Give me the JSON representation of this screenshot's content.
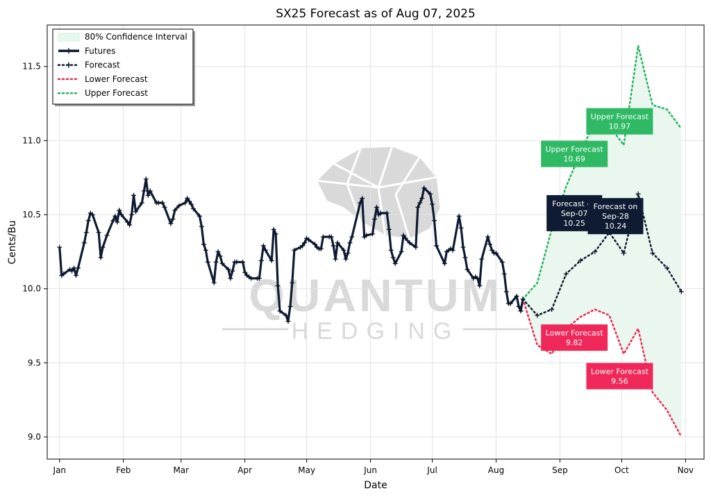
{
  "chart_data": {
    "type": "line",
    "title": "SX25 Forecast as of Aug 07, 2025",
    "xlabel": "Date",
    "ylabel": "Cents/Bu",
    "x_range": [
      "2024-12-26",
      "2025-11-10"
    ],
    "ylim": [
      8.85,
      11.78
    ],
    "x_ticks": [
      {
        "date": "2025-01-01",
        "label": "Jan"
      },
      {
        "date": "2025-02-01",
        "label": "Feb"
      },
      {
        "date": "2025-03-01",
        "label": "Mar"
      },
      {
        "date": "2025-04-01",
        "label": "Apr"
      },
      {
        "date": "2025-05-01",
        "label": "May"
      },
      {
        "date": "2025-06-01",
        "label": "Jun"
      },
      {
        "date": "2025-07-01",
        "label": "Jul"
      },
      {
        "date": "2025-08-01",
        "label": "Aug"
      },
      {
        "date": "2025-09-01",
        "label": "Sep"
      },
      {
        "date": "2025-10-01",
        "label": "Oct"
      },
      {
        "date": "2025-11-01",
        "label": "Nov"
      }
    ],
    "y_ticks": [
      9.0,
      9.5,
      10.0,
      10.5,
      11.0,
      11.5
    ],
    "grid": true,
    "legend_position": "top-left",
    "legend": [
      {
        "label": "80% Confidence Interval",
        "style": "fill"
      },
      {
        "label": "Futures",
        "style": "solid"
      },
      {
        "label": "Forecast",
        "style": "dotted-marker"
      },
      {
        "label": "Lower Forecast",
        "style": "dotted"
      },
      {
        "label": "Upper Forecast",
        "style": "dotted"
      }
    ],
    "colors": {
      "futures": "#0f1b33",
      "forecast": "#0f1b33",
      "lower": "#f0284f",
      "upper": "#21b35d",
      "band": "#e9f7ef"
    },
    "futures": [
      [
        "2025-01-01",
        10.28
      ],
      [
        "2025-01-02",
        10.09
      ],
      [
        "2025-01-03",
        10.1
      ],
      [
        "2025-01-06",
        10.13
      ],
      [
        "2025-01-07",
        10.12
      ],
      [
        "2025-01-08",
        10.14
      ],
      [
        "2025-01-09",
        10.09
      ],
      [
        "2025-01-10",
        10.14
      ],
      [
        "2025-01-13",
        10.31
      ],
      [
        "2025-01-14",
        10.38
      ],
      [
        "2025-01-15",
        10.46
      ],
      [
        "2025-01-16",
        10.51
      ],
      [
        "2025-01-17",
        10.5
      ],
      [
        "2025-01-20",
        10.38
      ],
      [
        "2025-01-21",
        10.21
      ],
      [
        "2025-01-22",
        10.28
      ],
      [
        "2025-01-24",
        10.36
      ],
      [
        "2025-01-27",
        10.46
      ],
      [
        "2025-01-28",
        10.49
      ],
      [
        "2025-01-29",
        10.45
      ],
      [
        "2025-01-30",
        10.53
      ],
      [
        "2025-01-31",
        10.5
      ],
      [
        "2025-02-03",
        10.45
      ],
      [
        "2025-02-04",
        10.43
      ],
      [
        "2025-02-05",
        10.5
      ],
      [
        "2025-02-06",
        10.63
      ],
      [
        "2025-02-07",
        10.52
      ],
      [
        "2025-02-10",
        10.58
      ],
      [
        "2025-02-11",
        10.66
      ],
      [
        "2025-02-12",
        10.74
      ],
      [
        "2025-02-13",
        10.63
      ],
      [
        "2025-02-14",
        10.66
      ],
      [
        "2025-02-17",
        10.58
      ],
      [
        "2025-02-18",
        10.58
      ],
      [
        "2025-02-20",
        10.58
      ],
      [
        "2025-02-21",
        10.55
      ],
      [
        "2025-02-24",
        10.44
      ],
      [
        "2025-02-25",
        10.47
      ],
      [
        "2025-02-26",
        10.53
      ],
      [
        "2025-02-28",
        10.56
      ],
      [
        "2025-03-03",
        10.58
      ],
      [
        "2025-03-04",
        10.61
      ],
      [
        "2025-03-05",
        10.59
      ],
      [
        "2025-03-06",
        10.57
      ],
      [
        "2025-03-07",
        10.54
      ],
      [
        "2025-03-10",
        10.49
      ],
      [
        "2025-03-11",
        10.42
      ],
      [
        "2025-03-12",
        10.3
      ],
      [
        "2025-03-13",
        10.26
      ],
      [
        "2025-03-14",
        10.18
      ],
      [
        "2025-03-17",
        10.04
      ],
      [
        "2025-03-18",
        10.18
      ],
      [
        "2025-03-19",
        10.25
      ],
      [
        "2025-03-20",
        10.22
      ],
      [
        "2025-03-21",
        10.17
      ],
      [
        "2025-03-24",
        10.13
      ],
      [
        "2025-03-25",
        10.07
      ],
      [
        "2025-03-26",
        10.12
      ],
      [
        "2025-03-27",
        10.18
      ],
      [
        "2025-03-28",
        10.18
      ],
      [
        "2025-03-31",
        10.18
      ],
      [
        "2025-04-01",
        10.11
      ],
      [
        "2025-04-02",
        10.09
      ],
      [
        "2025-04-03",
        10.08
      ],
      [
        "2025-04-04",
        10.07
      ],
      [
        "2025-04-07",
        10.07
      ],
      [
        "2025-04-08",
        10.07
      ],
      [
        "2025-04-09",
        10.19
      ],
      [
        "2025-04-10",
        10.29
      ],
      [
        "2025-04-11",
        10.26
      ],
      [
        "2025-04-14",
        10.19
      ],
      [
        "2025-04-15",
        10.4
      ],
      [
        "2025-04-16",
        10.37
      ],
      [
        "2025-04-17",
        10.02
      ],
      [
        "2025-04-18",
        9.85
      ],
      [
        "2025-04-21",
        9.82
      ],
      [
        "2025-04-22",
        9.78
      ],
      [
        "2025-04-23",
        9.88
      ],
      [
        "2025-04-24",
        10.04
      ],
      [
        "2025-04-25",
        10.26
      ],
      [
        "2025-04-28",
        10.28
      ],
      [
        "2025-04-29",
        10.29
      ],
      [
        "2025-04-30",
        10.31
      ],
      [
        "2025-05-01",
        10.34
      ],
      [
        "2025-05-02",
        10.33
      ],
      [
        "2025-05-05",
        10.3
      ],
      [
        "2025-05-06",
        10.28
      ],
      [
        "2025-05-07",
        10.27
      ],
      [
        "2025-05-08",
        10.27
      ],
      [
        "2025-05-09",
        10.35
      ],
      [
        "2025-05-12",
        10.35
      ],
      [
        "2025-05-13",
        10.35
      ],
      [
        "2025-05-14",
        10.29
      ],
      [
        "2025-05-15",
        10.2
      ],
      [
        "2025-05-16",
        10.31
      ],
      [
        "2025-05-19",
        10.26
      ],
      [
        "2025-05-20",
        10.2
      ],
      [
        "2025-05-21",
        10.24
      ],
      [
        "2025-05-22",
        10.31
      ],
      [
        "2025-05-23",
        10.35
      ],
      [
        "2025-05-27",
        10.58
      ],
      [
        "2025-05-28",
        10.61
      ],
      [
        "2025-05-29",
        10.35
      ],
      [
        "2025-05-30",
        10.36
      ],
      [
        "2025-06-02",
        10.37
      ],
      [
        "2025-06-03",
        10.47
      ],
      [
        "2025-06-04",
        10.55
      ],
      [
        "2025-06-05",
        10.5
      ],
      [
        "2025-06-06",
        10.51
      ],
      [
        "2025-06-09",
        10.51
      ],
      [
        "2025-06-10",
        10.4
      ],
      [
        "2025-06-11",
        10.26
      ],
      [
        "2025-06-12",
        10.21
      ],
      [
        "2025-06-13",
        10.17
      ],
      [
        "2025-06-16",
        10.25
      ],
      [
        "2025-06-17",
        10.36
      ],
      [
        "2025-06-18",
        10.34
      ],
      [
        "2025-06-20",
        10.31
      ],
      [
        "2025-06-23",
        10.28
      ],
      [
        "2025-06-24",
        10.55
      ],
      [
        "2025-06-25",
        10.58
      ],
      [
        "2025-06-26",
        10.61
      ],
      [
        "2025-06-27",
        10.68
      ],
      [
        "2025-06-30",
        10.64
      ],
      [
        "2025-07-01",
        10.57
      ],
      [
        "2025-07-02",
        10.46
      ],
      [
        "2025-07-03",
        10.29
      ],
      [
        "2025-07-07",
        10.17
      ],
      [
        "2025-07-08",
        10.25
      ],
      [
        "2025-07-09",
        10.26
      ],
      [
        "2025-07-10",
        10.27
      ],
      [
        "2025-07-11",
        10.26
      ],
      [
        "2025-07-14",
        10.49
      ],
      [
        "2025-07-15",
        10.41
      ],
      [
        "2025-07-16",
        10.28
      ],
      [
        "2025-07-17",
        10.21
      ],
      [
        "2025-07-18",
        10.13
      ],
      [
        "2025-07-21",
        10.07
      ],
      [
        "2025-07-22",
        10.08
      ],
      [
        "2025-07-23",
        10.07
      ],
      [
        "2025-07-24",
        10.02
      ],
      [
        "2025-07-25",
        10.2
      ],
      [
        "2025-07-28",
        10.35
      ],
      [
        "2025-07-29",
        10.3
      ],
      [
        "2025-07-30",
        10.26
      ],
      [
        "2025-07-31",
        10.24
      ],
      [
        "2025-08-01",
        10.24
      ],
      [
        "2025-08-04",
        10.18
      ],
      [
        "2025-08-05",
        10.1
      ],
      [
        "2025-08-06",
        9.98
      ],
      [
        "2025-08-07",
        9.9
      ],
      [
        "2025-08-08",
        9.9
      ],
      [
        "2025-08-11",
        9.95
      ],
      [
        "2025-08-12",
        9.88
      ],
      [
        "2025-08-13",
        9.85
      ],
      [
        "2025-08-14",
        9.93
      ]
    ],
    "forecast": [
      [
        "2025-08-14",
        9.93
      ],
      [
        "2025-08-21",
        9.82
      ],
      [
        "2025-08-28",
        9.86
      ],
      [
        "2025-09-04",
        10.1
      ],
      [
        "2025-09-11",
        10.19
      ],
      [
        "2025-09-18",
        10.25
      ],
      [
        "2025-09-25",
        10.38
      ],
      [
        "2025-10-02",
        10.24
      ],
      [
        "2025-10-09",
        10.64
      ],
      [
        "2025-10-16",
        10.24
      ],
      [
        "2025-10-23",
        10.14
      ],
      [
        "2025-10-30",
        9.98
      ]
    ],
    "upper": [
      [
        "2025-08-14",
        9.93
      ],
      [
        "2025-08-21",
        10.04
      ],
      [
        "2025-08-28",
        10.4
      ],
      [
        "2025-09-04",
        10.69
      ],
      [
        "2025-09-11",
        10.92
      ],
      [
        "2025-09-18",
        11.13
      ],
      [
        "2025-09-25",
        11.1
      ],
      [
        "2025-10-02",
        10.97
      ],
      [
        "2025-10-09",
        11.64
      ],
      [
        "2025-10-16",
        11.24
      ],
      [
        "2025-10-23",
        11.21
      ],
      [
        "2025-10-30",
        11.08
      ]
    ],
    "lower": [
      [
        "2025-08-14",
        9.93
      ],
      [
        "2025-08-21",
        9.62
      ],
      [
        "2025-08-28",
        9.56
      ],
      [
        "2025-09-04",
        9.73
      ],
      [
        "2025-09-11",
        9.81
      ],
      [
        "2025-09-18",
        9.86
      ],
      [
        "2025-09-25",
        9.82
      ],
      [
        "2025-10-02",
        9.56
      ],
      [
        "2025-10-09",
        9.73
      ],
      [
        "2025-10-16",
        9.3
      ],
      [
        "2025-10-23",
        9.18
      ],
      [
        "2025-10-30",
        9.0
      ]
    ],
    "callouts": [
      {
        "kind": "upper",
        "lines": [
          "Upper Forecast",
          "10.97"
        ],
        "date": "2025-09-30",
        "y": 11.13
      },
      {
        "kind": "upper",
        "lines": [
          "Upper Forecast",
          "10.69"
        ],
        "date": "2025-09-08",
        "y": 10.91
      },
      {
        "kind": "forecast",
        "lines": [
          "Forecast on",
          "Sep-07",
          "10.25"
        ],
        "date": "2025-09-08",
        "y": 10.51
      },
      {
        "kind": "forecast",
        "lines": [
          "Forecast on",
          "Sep-28",
          "10.24"
        ],
        "date": "2025-09-28",
        "y": 10.49
      },
      {
        "kind": "lower",
        "lines": [
          "Lower Forecast",
          "9.82"
        ],
        "date": "2025-09-08",
        "y": 9.67
      },
      {
        "kind": "lower",
        "lines": [
          "Lower Forecast",
          "9.56"
        ],
        "date": "2025-09-30",
        "y": 9.41
      }
    ],
    "watermark": {
      "line1": "QUANTUM",
      "line2": "HEDGING"
    }
  }
}
